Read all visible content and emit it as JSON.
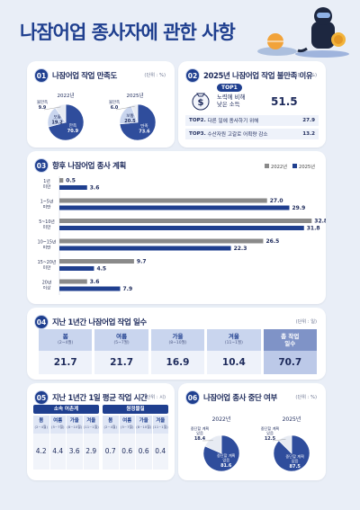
{
  "page": {
    "title": "나잠어업 종사자에 관한 사항"
  },
  "colors": {
    "navy": "#1f3f8f",
    "gray": "#8a8a8a",
    "light": "#c9d5ee"
  },
  "sections": {
    "s1": {
      "num": "01",
      "title": "나잠어업 작업 만족도",
      "unit": "(단위 : %)"
    },
    "s2": {
      "num": "02",
      "title": "2025년 나잠어업 작업 불만족 이유",
      "unit": "(단위 : %)"
    },
    "s3": {
      "num": "03",
      "title": "향후 나잠어업 종사 계획",
      "legend": [
        "2022년",
        "2025년"
      ]
    },
    "s4": {
      "num": "04",
      "title": "지난 1년간 나잠어업 작업 일수",
      "unit": "(단위 : 일)"
    },
    "s5": {
      "num": "05",
      "title": "지난 1년간 1일 평균 작업 시간",
      "unit": "(단위 : 시)"
    },
    "s6": {
      "num": "06",
      "title": "나잠어업 종사 중단 여부",
      "unit": "(단위 : %)"
    }
  },
  "chart_data": [
    {
      "type": "pie",
      "title": "나잠어업 작업 만족도",
      "charts": [
        {
          "year": "2022년",
          "slices": [
            {
              "label": "만족",
              "value": 70.9
            },
            {
              "label": "보통",
              "value": 19.2
            },
            {
              "label": "불만족",
              "value": 9.9
            }
          ]
        },
        {
          "year": "2025년",
          "slices": [
            {
              "label": "만족",
              "value": 73.6
            },
            {
              "label": "보통",
              "value": 20.5
            },
            {
              "label": "불만족",
              "value": 6.0
            }
          ]
        }
      ]
    },
    {
      "type": "table",
      "title": "2025년 나잠어업 작업 불만족 이유",
      "top1": {
        "badge": "TOP1",
        "label_l1": "노력에 비해",
        "label_l2": "낮은 소득",
        "value": "51.5"
      },
      "rows": [
        {
          "rank": "TOP2.",
          "label": "다른 일에 종사하기 위해",
          "value": "27.9"
        },
        {
          "rank": "TOP3.",
          "label": "수산자원 고갈로 어획량 감소",
          "value": "13.2"
        }
      ]
    },
    {
      "type": "bar",
      "title": "향후 나잠어업 종사 계획",
      "categories": [
        {
          "l1": "1년",
          "l2": "미만"
        },
        {
          "l1": "1~5년",
          "l2": "미만"
        },
        {
          "l1": "5~10년",
          "l2": "미만"
        },
        {
          "l1": "10~15년",
          "l2": "미만"
        },
        {
          "l1": "15~20년",
          "l2": "미만"
        },
        {
          "l1": "20년",
          "l2": "이상"
        }
      ],
      "series": [
        {
          "name": "2022년",
          "values": [
            0.5,
            27.0,
            32.8,
            26.5,
            9.7,
            3.6
          ]
        },
        {
          "name": "2025년",
          "values": [
            3.6,
            29.9,
            31.8,
            22.3,
            4.5,
            7.9
          ]
        }
      ],
      "xlim": [
        0,
        33
      ]
    },
    {
      "type": "table",
      "title": "지난 1년간 나잠어업 작업 일수",
      "columns": [
        {
          "name": "봄",
          "sub": "(2~4월)",
          "value": "21.7"
        },
        {
          "name": "여름",
          "sub": "(5~7월)",
          "value": "21.7"
        },
        {
          "name": "가을",
          "sub": "(8~10월)",
          "value": "16.9"
        },
        {
          "name": "겨울",
          "sub": "(11~1월)",
          "value": "10.4"
        },
        {
          "name": "총 작업",
          "name2": "일수",
          "value": "70.7"
        }
      ]
    },
    {
      "type": "table",
      "title": "지난 1년간 1일 평균 작업 시간",
      "groups": [
        {
          "name": "소속 어촌계",
          "cols": [
            {
              "name": "봄",
              "sub": "(2~4월)",
              "value": "4.2"
            },
            {
              "name": "여름",
              "sub": "(5~7월)",
              "value": "4.4"
            },
            {
              "name": "가을",
              "sub": "(8~10월)",
              "value": "3.6"
            },
            {
              "name": "겨울",
              "sub": "(11~1월)",
              "value": "2.9"
            }
          ]
        },
        {
          "name": "원정물질",
          "cols": [
            {
              "name": "봄",
              "sub": "(2~4월)",
              "value": "0.7"
            },
            {
              "name": "여름",
              "sub": "(5~7월)",
              "value": "0.6"
            },
            {
              "name": "가을",
              "sub": "(8~10월)",
              "value": "0.6"
            },
            {
              "name": "겨울",
              "sub": "(11~1월)",
              "value": "0.4"
            }
          ]
        }
      ]
    },
    {
      "type": "pie",
      "title": "나잠어업 종사 중단 여부",
      "charts": [
        {
          "year": "2022년",
          "slices": [
            {
              "label_l1": "중단할 계획",
              "label_l2": "없음",
              "value": 81.6
            },
            {
              "label_l1": "중단할 계획",
              "label_l2": "있음",
              "value": 18.4
            }
          ]
        },
        {
          "year": "2025년",
          "slices": [
            {
              "label_l1": "중단할 계획",
              "label_l2": "없음",
              "value": 87.5
            },
            {
              "label_l1": "중단할 계획",
              "label_l2": "있음",
              "value": 12.5
            }
          ]
        }
      ]
    }
  ]
}
